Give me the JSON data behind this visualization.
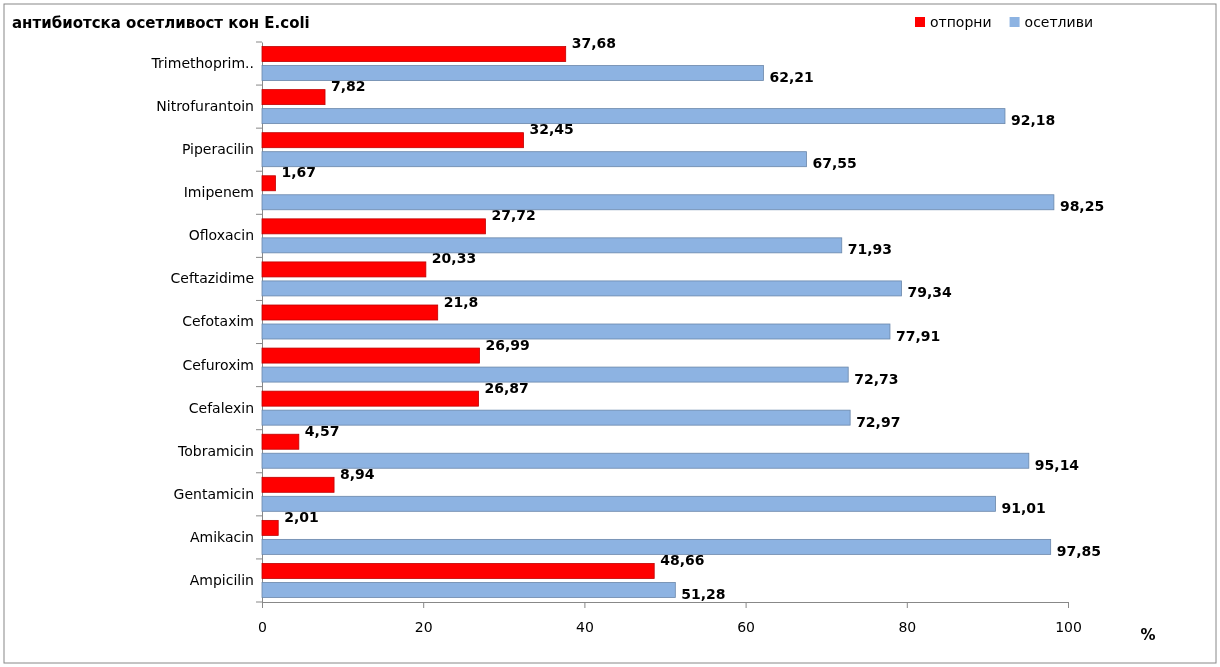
{
  "chart_data": {
    "type": "bar",
    "orientation": "horizontal",
    "title": "антибиотска осетливост кон E.coli",
    "xlabel": "%",
    "categories": [
      "Trimethoprim..",
      "Nitrofurantoin",
      "Piperacilin",
      "Imipenem",
      "Ofloxacin",
      "Ceftazidime",
      "Cefotaxim",
      "Cefuroxim",
      "Cefalexin",
      "Tobramicin",
      "Gentamicin",
      "Amikacin",
      "Ampicilin"
    ],
    "series": [
      {
        "name": "отпорни",
        "color": "#ff0000",
        "values": [
          37.68,
          7.82,
          32.45,
          1.67,
          27.72,
          20.33,
          21.8,
          26.99,
          26.87,
          4.57,
          8.94,
          2.01,
          48.66
        ],
        "value_labels": [
          "37,68",
          "7,82",
          "32,45",
          "1,67",
          "27,72",
          "20,33",
          "21,8",
          "26,99",
          "26,87",
          "4,57",
          "8,94",
          "2,01",
          "48,66"
        ]
      },
      {
        "name": "осетливи",
        "color": "#8db3e2",
        "values": [
          62.21,
          92.18,
          67.55,
          98.25,
          71.93,
          79.34,
          77.91,
          72.73,
          72.97,
          95.14,
          91.01,
          97.85,
          51.28
        ],
        "value_labels": [
          "62,21",
          "92,18",
          "67,55",
          "98,25",
          "71,93",
          "79,34",
          "77,91",
          "72,73",
          "72,97",
          "95,14",
          "91,01",
          "97,85",
          "51,28"
        ]
      }
    ],
    "xlim": [
      0,
      100
    ],
    "xticks": [
      0,
      20,
      40,
      60,
      80,
      100
    ],
    "grid": false,
    "legend": "top right"
  }
}
